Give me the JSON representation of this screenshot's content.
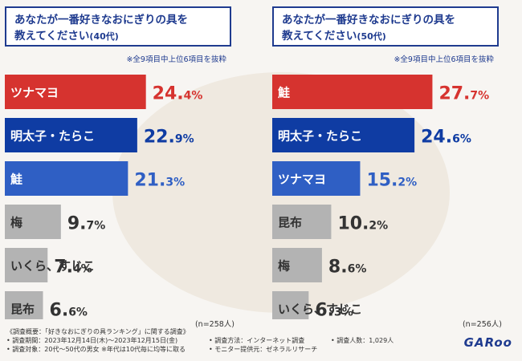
{
  "colors": {
    "red": "#d6332f",
    "navy": "#0f3ca3",
    "blue": "#2f5fc4",
    "gray": "#b3b3b3"
  },
  "chart_data": [
    {
      "type": "bar",
      "title_line1": "あなたが一番好きなおにぎりの具を",
      "title_line2": "教えてください",
      "title_suffix": "(40代)",
      "note": "※全9項目中上位6項目を抜粋",
      "n": "(n=258人)",
      "xlim": [
        0,
        30
      ],
      "categories": [
        "ツナマヨ",
        "明太子・たらこ",
        "鮭",
        "梅",
        "いくら、すじこ",
        "昆布"
      ],
      "values": [
        24.4,
        22.9,
        21.3,
        9.7,
        7.4,
        6.6
      ],
      "value_int": [
        "24.",
        "22.",
        "21.",
        "9.",
        "7.",
        "6."
      ],
      "value_dec": [
        "4%",
        "9%",
        "3%",
        "7%",
        "4%",
        "6%"
      ],
      "bar_colors": [
        "red",
        "navy",
        "blue",
        "gray",
        "gray",
        "gray"
      ]
    },
    {
      "type": "bar",
      "title_line1": "あなたが一番好きなおにぎりの具を",
      "title_line2": "教えてください",
      "title_suffix": "(50代)",
      "note": "※全9項目中上位6項目を抜粋",
      "n": "(n=256人)",
      "xlim": [
        0,
        30
      ],
      "categories": [
        "鮭",
        "明太子・たらこ",
        "ツナマヨ",
        "昆布",
        "梅",
        "いくら、すじこ"
      ],
      "values": [
        27.7,
        24.6,
        15.2,
        10.2,
        8.6,
        6.3
      ],
      "value_int": [
        "27.",
        "24.",
        "15.",
        "10.",
        "8.",
        "6."
      ],
      "value_dec": [
        "7%",
        "6%",
        "2%",
        "2%",
        "6%",
        "3%"
      ],
      "bar_colors": [
        "red",
        "navy",
        "blue",
        "gray",
        "gray",
        "gray"
      ]
    }
  ],
  "footer": {
    "line1": "《調査概要：「好きなおにぎりの具ランキング」に関する調査》",
    "period": "• 調査期間：2023年12月14日(木)〜2023年12月15日(金)",
    "method": "• 調査方法：インターネット調査",
    "count": "• 調査人数：1,029人",
    "target": "• 調査対象：20代〜50代の男女 ※年代は10代毎に均等に取る",
    "provider": "• モニター提供元：ゼネラルリサーチ"
  },
  "logo": "GARoo"
}
